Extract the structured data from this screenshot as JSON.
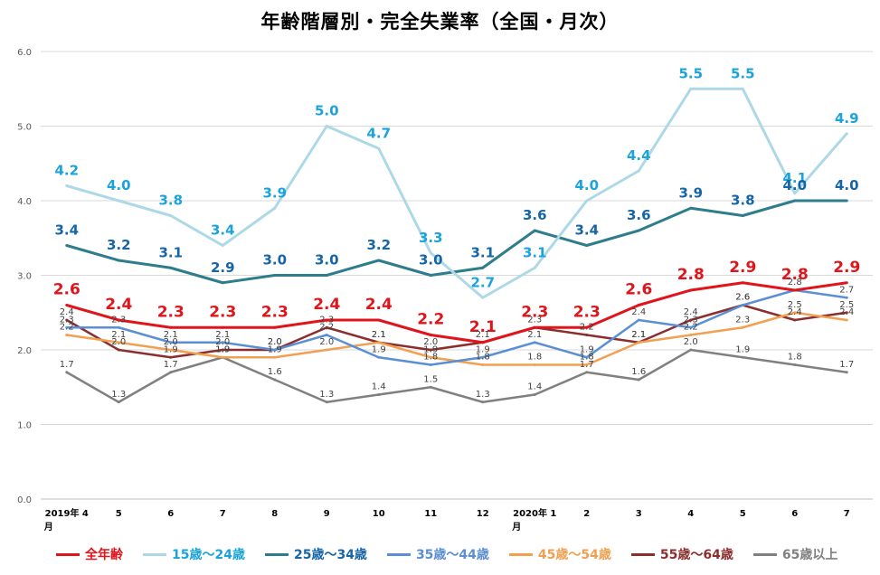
{
  "chart_data": {
    "type": "line",
    "title": "年齢階層別・完全失業率（全国・月次）",
    "categories": [
      "2019年 4月",
      "5",
      "6",
      "7",
      "8",
      "9",
      "10",
      "11",
      "12",
      "2020年 1月",
      "2",
      "3",
      "4",
      "5",
      "6",
      "7"
    ],
    "ylim": [
      0,
      6
    ],
    "yticks": [
      "0.0",
      "1.0",
      "2.0",
      "3.0",
      "4.0",
      "5.0",
      "6.0"
    ],
    "grid": true,
    "legend_position": "bottom",
    "series": [
      {
        "name": "全年齢",
        "color": "#e0141b",
        "label_style": "large",
        "values": [
          2.6,
          2.4,
          2.3,
          2.3,
          2.3,
          2.4,
          2.4,
          2.2,
          2.1,
          2.3,
          2.3,
          2.6,
          2.8,
          2.9,
          2.8,
          2.9
        ]
      },
      {
        "name": "15歳～24歳",
        "color": "#add8e6",
        "label_color": "#1aa3dc",
        "label_style": "large",
        "values": [
          4.2,
          4.0,
          3.8,
          3.4,
          3.9,
          5.0,
          4.7,
          3.3,
          2.7,
          3.1,
          4.0,
          4.4,
          5.5,
          5.5,
          4.1,
          4.9
        ]
      },
      {
        "name": "25歳～34歳",
        "color": "#2e7d8c",
        "label_color": "#1565a8",
        "label_style": "large",
        "values": [
          3.4,
          3.2,
          3.1,
          2.9,
          3.0,
          3.0,
          3.2,
          3.0,
          3.1,
          3.6,
          3.4,
          3.6,
          3.9,
          3.8,
          4.0,
          4.0
        ]
      },
      {
        "name": "35歳～44歳",
        "color": "#5b8fd4",
        "label_style": "small",
        "values": [
          2.3,
          2.3,
          2.1,
          2.1,
          2.0,
          2.2,
          1.9,
          1.8,
          1.9,
          2.1,
          1.9,
          2.4,
          2.3,
          2.6,
          2.8,
          2.7
        ]
      },
      {
        "name": "45歳～54歳",
        "color": "#f0a050",
        "label_style": "small",
        "values": [
          2.2,
          2.1,
          2.0,
          1.9,
          1.9,
          2.0,
          2.1,
          1.9,
          1.8,
          1.8,
          1.8,
          2.1,
          2.2,
          2.3,
          2.5,
          2.4
        ]
      },
      {
        "name": "55歳～64歳",
        "color": "#8b2e2e",
        "label_style": "small",
        "values": [
          2.4,
          2.0,
          1.9,
          2.0,
          2.0,
          2.3,
          2.1,
          2.0,
          2.1,
          2.3,
          2.2,
          2.1,
          2.4,
          2.6,
          2.4,
          2.5
        ]
      },
      {
        "name": "65歳以上",
        "color": "#808080",
        "label_style": "small",
        "values": [
          1.7,
          1.3,
          1.7,
          1.9,
          1.6,
          1.3,
          1.4,
          1.5,
          1.3,
          1.4,
          1.7,
          1.6,
          2.0,
          1.9,
          1.8,
          1.7
        ]
      }
    ]
  }
}
